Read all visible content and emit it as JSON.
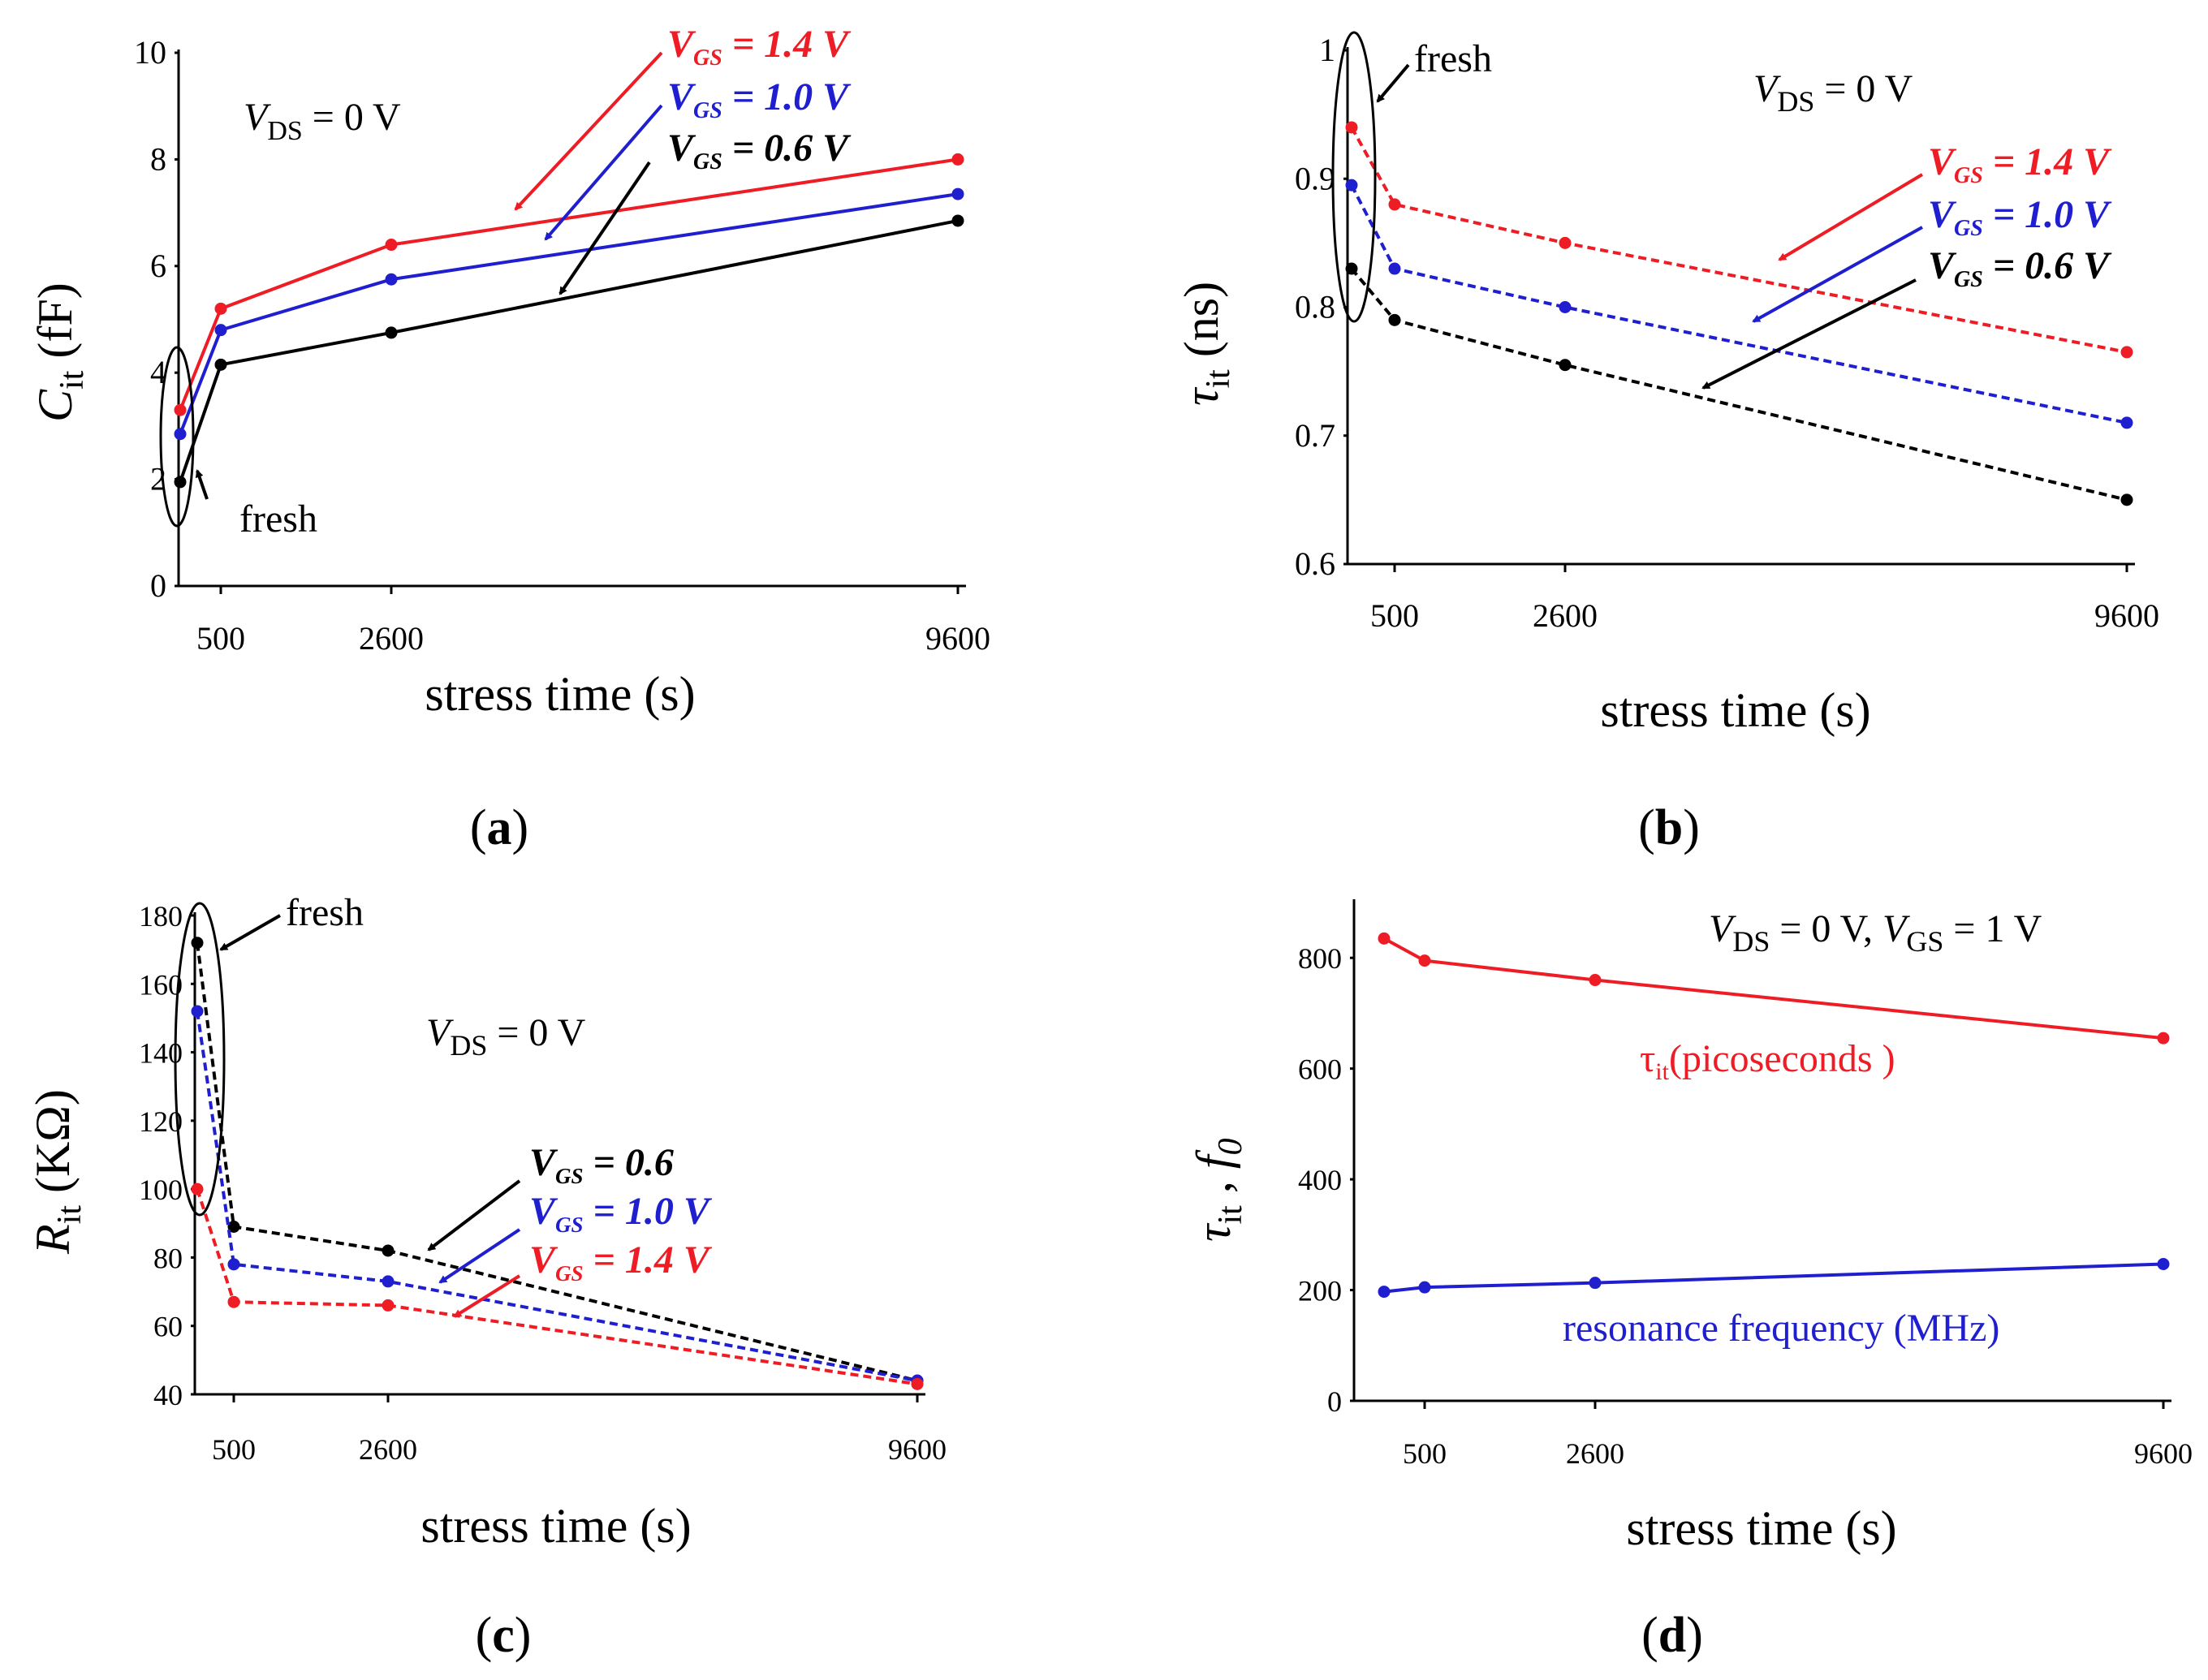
{
  "colors": {
    "red": "#ee1c24",
    "blue": "#1f1fd0",
    "black": "#000000"
  },
  "chart_data": [
    {
      "id": "a",
      "panel_label": "a",
      "type": "line",
      "line_style": "solid",
      "x_categories": [
        "fresh",
        "500",
        "2600",
        "9600"
      ],
      "x_values": [
        0,
        500,
        2600,
        9600
      ],
      "x_tick_labels": [
        "500",
        "2600",
        "9600"
      ],
      "xlabel": "stress time (s)",
      "ylabel": {
        "symbol": "C",
        "sub": "it",
        "unit": "(fF)"
      },
      "ylim": [
        0,
        10
      ],
      "yticks": [
        "0",
        "2",
        "4",
        "6",
        "8",
        "10"
      ],
      "annotation": {
        "text": "V",
        "sub": "DS",
        "rest": " = 0 V"
      },
      "fresh_label": "fresh",
      "series": [
        {
          "name": "V_GS = 1.4 V",
          "label_prefix": "V",
          "label_sub": "GS",
          "label_rest": " = 1.4 V",
          "color": "#ee1c24",
          "values": [
            3.3,
            5.2,
            6.4,
            8.0
          ]
        },
        {
          "name": "V_GS = 1.0 V",
          "label_prefix": "V",
          "label_sub": "GS",
          "label_rest": " = 1.0 V",
          "color": "#1f1fd0",
          "values": [
            2.85,
            4.8,
            5.75,
            7.35
          ]
        },
        {
          "name": "V_GS = 0.6 V",
          "label_prefix": "V",
          "label_sub": "GS",
          "label_rest": " = 0.6 V",
          "color": "#000000",
          "values": [
            1.95,
            4.15,
            4.75,
            6.85
          ]
        }
      ]
    },
    {
      "id": "b",
      "panel_label": "b",
      "type": "line",
      "line_style": "dashed",
      "x_categories": [
        "fresh",
        "500",
        "2600",
        "9600"
      ],
      "x_values": [
        0,
        500,
        2600,
        9600
      ],
      "x_tick_labels": [
        "500",
        "2600",
        "9600"
      ],
      "xlabel": "stress time (s)",
      "ylabel": {
        "symbol": "τ",
        "sub": "it",
        "unit": "(ns)"
      },
      "ylim": [
        0.6,
        1.0
      ],
      "yticks": [
        "0.6",
        "0.7",
        "0.8",
        "0.9",
        "1"
      ],
      "annotation": {
        "text": "V",
        "sub": "DS",
        "rest": " = 0 V"
      },
      "fresh_label": "fresh",
      "series": [
        {
          "name": "V_GS = 1.4 V",
          "label_prefix": "V",
          "label_sub": "GS",
          "label_rest": " = 1.4 V",
          "color": "#ee1c24",
          "values": [
            0.94,
            0.88,
            0.85,
            0.765
          ]
        },
        {
          "name": "V_GS = 1.0 V",
          "label_prefix": "V",
          "label_sub": "GS",
          "label_rest": " = 1.0 V",
          "color": "#1f1fd0",
          "values": [
            0.895,
            0.83,
            0.8,
            0.71
          ]
        },
        {
          "name": "V_GS = 0.6 V",
          "label_prefix": "V",
          "label_sub": "GS",
          "label_rest": " = 0.6 V",
          "color": "#000000",
          "values": [
            0.83,
            0.79,
            0.755,
            0.65
          ]
        }
      ]
    },
    {
      "id": "c",
      "panel_label": "c",
      "type": "line",
      "line_style": "dashed",
      "x_categories": [
        "fresh",
        "500",
        "2600",
        "9600"
      ],
      "x_values": [
        0,
        500,
        2600,
        9600
      ],
      "x_tick_labels": [
        "500",
        "2600",
        "9600"
      ],
      "xlabel": "stress time (s)",
      "ylabel": {
        "symbol": "R",
        "sub": "it",
        "unit": "(KΩ)"
      },
      "ylim": [
        40,
        180
      ],
      "yticks": [
        "40",
        "60",
        "80",
        "100",
        "120",
        "140",
        "160",
        "180"
      ],
      "annotation": {
        "text": "V",
        "sub": "DS",
        "rest": " = 0 V"
      },
      "fresh_label": "fresh",
      "series": [
        {
          "name": "V_GS = 0.6",
          "label_prefix": "V",
          "label_sub": "GS",
          "label_rest": " = 0.6",
          "color": "#000000",
          "values": [
            172,
            89,
            82,
            44
          ]
        },
        {
          "name": "V_GS = 1.0 V",
          "label_prefix": "V",
          "label_sub": "GS",
          "label_rest": " = 1.0 V",
          "color": "#1f1fd0",
          "values": [
            152,
            78,
            73,
            44
          ]
        },
        {
          "name": "V_GS = 1.4 V",
          "label_prefix": "V",
          "label_sub": "GS",
          "label_rest": " = 1.4 V",
          "color": "#ee1c24",
          "values": [
            100,
            67,
            66,
            43
          ]
        }
      ]
    },
    {
      "id": "d",
      "panel_label": "d",
      "type": "line",
      "line_style": "solid",
      "x_categories": [
        "fresh",
        "500",
        "2600",
        "9600"
      ],
      "x_values": [
        0,
        500,
        2600,
        9600
      ],
      "x_tick_labels": [
        "500",
        "2600",
        "9600"
      ],
      "xlabel": "stress time (s)",
      "ylabel": {
        "symbol": "τ",
        "sub": "it",
        "mid": " , ",
        "symbol2": "f",
        "sub2": "0"
      },
      "ylim": [
        0,
        900
      ],
      "yticks": [
        "0",
        "200",
        "400",
        "600",
        "800"
      ],
      "annotation": {
        "text": "V",
        "sub": "DS",
        "rest": " = 0 V, ",
        "text2": "V",
        "sub2": "GS",
        "rest2": " = 1 V"
      },
      "series": [
        {
          "name": "τit(picoseconds )",
          "label_prefix": "τ",
          "label_sub": "it",
          "label_rest": "(picoseconds )",
          "color": "#ee1c24",
          "values": [
            835,
            795,
            760,
            655
          ]
        },
        {
          "name": "resonance frequency (MHz)",
          "label_prefix": "",
          "label_sub": "",
          "label_rest": "resonance  frequency  (MHz)",
          "color": "#1f1fd0",
          "values": [
            197,
            205,
            213,
            247
          ]
        }
      ]
    }
  ]
}
